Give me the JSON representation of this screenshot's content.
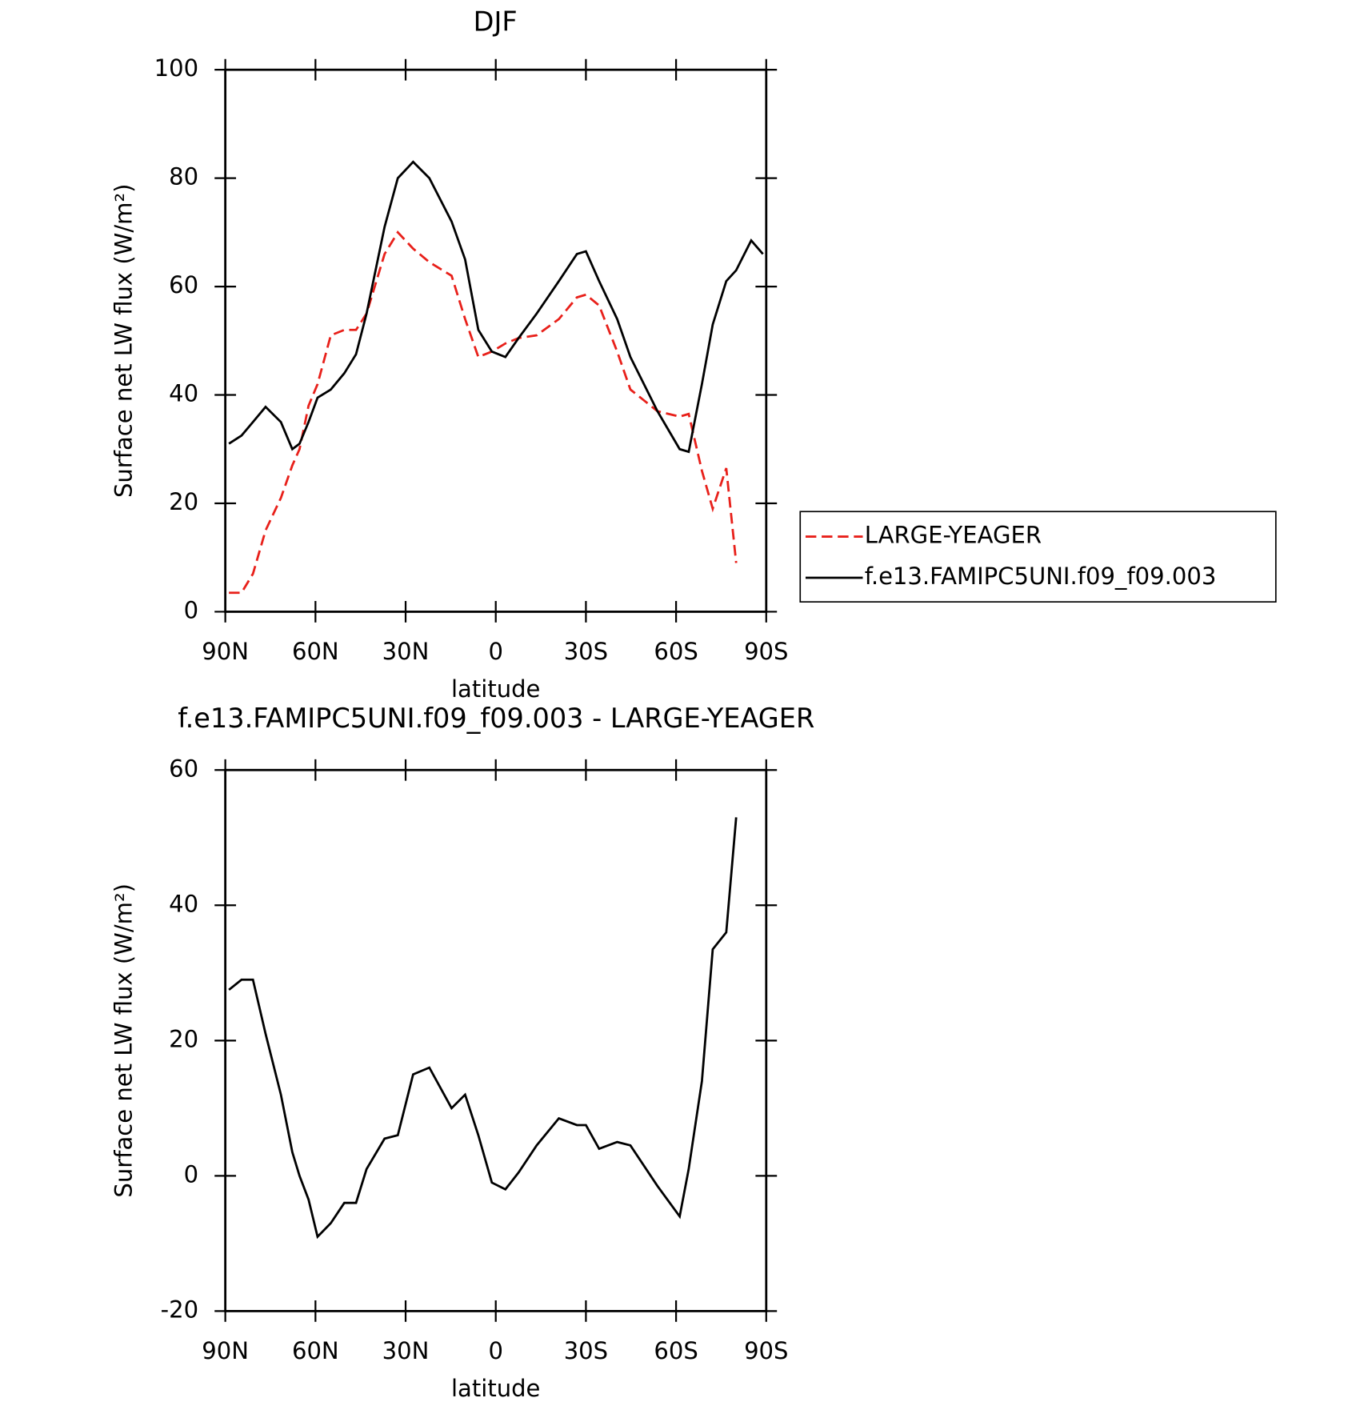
{
  "chart_data": [
    {
      "type": "line",
      "title": "DJF",
      "xlabel": "latitude",
      "ylabel": "Surface net LW flux (W/m²)",
      "x": [
        88.8,
        84.6,
        80.8,
        76.6,
        71.5,
        67.7,
        65.3,
        62.3,
        59.3,
        54.9,
        50.4,
        46.5,
        43,
        37,
        32.6,
        27.5,
        22.1,
        14.7,
        10.2,
        5.8,
        1.3,
        -3.2,
        -7.6,
        -13.6,
        -21,
        -27,
        -30,
        -34.4,
        -40.4,
        -44.8,
        -53.8,
        -61.2,
        -64.2,
        -68.6,
        -72.2,
        -76.7,
        -80,
        -85,
        -88.9
      ],
      "series": [
        {
          "name": "LARGE-YEAGER",
          "color": "#e8201a",
          "dash": true,
          "values": [
            3.5,
            3.5,
            7,
            15,
            21,
            27,
            30,
            38,
            42,
            51,
            52,
            52,
            55,
            66,
            70,
            67,
            64.5,
            62,
            54,
            47,
            48,
            49.5,
            50.5,
            51,
            54,
            58,
            58.5,
            56.5,
            48,
            41,
            37,
            36,
            36.5,
            26,
            19,
            26.5,
            9,
            null,
            null
          ]
        },
        {
          "name": "f.e13.FAMIPC5UNI.f09_f09.003",
          "color": "#000000",
          "dash": false,
          "values": [
            31,
            32.5,
            35,
            37.8,
            35,
            30,
            31,
            35,
            39.5,
            41,
            44,
            47.5,
            55,
            71,
            80,
            83,
            80,
            72,
            65,
            52,
            48,
            47,
            50.5,
            55,
            61,
            66,
            66.5,
            61,
            54,
            47,
            37,
            30,
            29.5,
            42,
            53,
            61,
            63,
            68.5,
            66
          ]
        }
      ],
      "xlim": [
        90,
        -90
      ],
      "xticks": [
        {
          "value": 90,
          "label": "90N"
        },
        {
          "value": 60,
          "label": "60N"
        },
        {
          "value": 30,
          "label": "30N"
        },
        0,
        {
          "value": -30,
          "label": "30S"
        },
        {
          "value": -60,
          "label": "60S"
        },
        {
          "value": -90,
          "label": "90S"
        }
      ],
      "ylim": [
        0,
        100
      ],
      "yticks": [
        0,
        20,
        40,
        60,
        80,
        100
      ],
      "legend": "right"
    },
    {
      "type": "line",
      "title": "f.e13.FAMIPC5UNI.f09_f09.003 - LARGE-YEAGER",
      "xlabel": "latitude",
      "ylabel": "Surface net LW flux (W/m²)",
      "x": [
        88.8,
        84.6,
        80.8,
        76.6,
        71.5,
        67.7,
        65.3,
        62.3,
        59.3,
        54.9,
        50.4,
        46.5,
        43,
        37,
        32.6,
        27.5,
        22.1,
        14.7,
        10.2,
        5.8,
        1.3,
        -3.2,
        -7.6,
        -13.6,
        -21,
        -27,
        -30,
        -34.4,
        -40.4,
        -44.8,
        -53.8,
        -61.2,
        -64.2,
        -68.6,
        -72.2,
        -76.7,
        -80,
        -85,
        -88.9
      ],
      "series": [
        {
          "color": "#000000",
          "dash": false,
          "values": [
            27.5,
            29,
            29,
            21,
            12,
            3.5,
            0,
            -3.5,
            -9,
            -7,
            -4,
            -4,
            1,
            5.5,
            6,
            15,
            16,
            10,
            12,
            6,
            -1,
            -2,
            0.5,
            4.5,
            8.5,
            7.5,
            7.5,
            4,
            5,
            4.5,
            -1.5,
            -6,
            1,
            14,
            33.5,
            36,
            53,
            null,
            null
          ]
        }
      ],
      "xlim": [
        90,
        -90
      ],
      "xticks": [
        {
          "value": 90,
          "label": "90N"
        },
        {
          "value": 60,
          "label": "60N"
        },
        {
          "value": 30,
          "label": "30N"
        },
        0,
        {
          "value": -30,
          "label": "30S"
        },
        {
          "value": -60,
          "label": "60S"
        },
        {
          "value": -90,
          "label": "90S"
        }
      ],
      "ylim": [
        -20,
        60
      ],
      "yticks": [
        -20,
        0,
        20,
        40,
        60
      ]
    }
  ]
}
